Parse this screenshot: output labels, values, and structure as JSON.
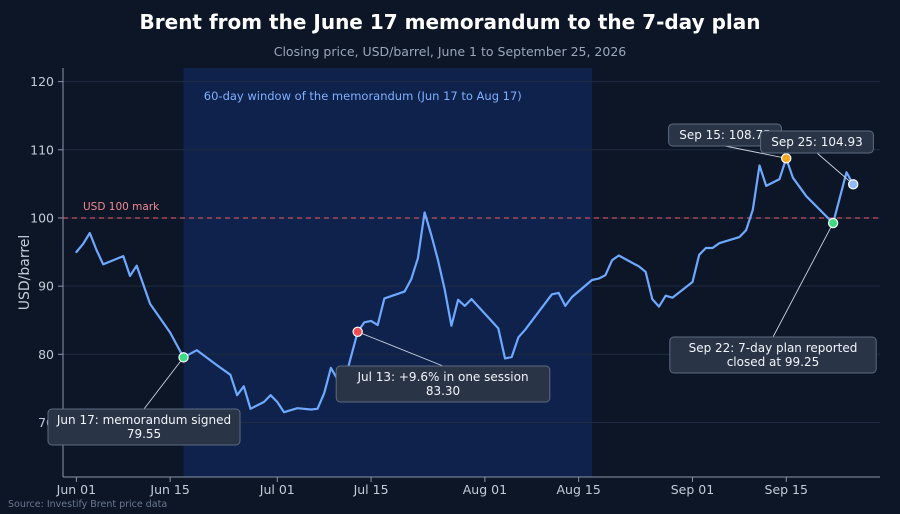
{
  "chart_data": {
    "type": "line",
    "title": "Brent from the June 17 memorandum to the 7-day plan",
    "subtitle": "Closing price, USD/barrel, June 1 to September 25, 2026",
    "ylabel": "USD/barrel",
    "xlabel": "",
    "source": "Source: Investify Brent price data",
    "xlim": [
      "2026-05-30",
      "2026-09-29"
    ],
    "ylim": [
      62,
      122
    ],
    "yticks": [
      70,
      80,
      90,
      100,
      110,
      120
    ],
    "xticks": [
      {
        "date": "2026-06-01",
        "label": "Jun 01"
      },
      {
        "date": "2026-06-15",
        "label": "Jun 15"
      },
      {
        "date": "2026-07-01",
        "label": "Jul 01"
      },
      {
        "date": "2026-07-15",
        "label": "Jul 15"
      },
      {
        "date": "2026-08-01",
        "label": "Aug 01"
      },
      {
        "date": "2026-08-15",
        "label": "Aug 15"
      },
      {
        "date": "2026-09-01",
        "label": "Sep 01"
      },
      {
        "date": "2026-09-15",
        "label": "Sep 15"
      }
    ],
    "grid": true,
    "series": [
      {
        "color": "#6ea8ff",
        "points": [
          [
            "2026-06-01",
            95.0
          ],
          [
            "2026-06-02",
            96.2
          ],
          [
            "2026-06-03",
            97.8
          ],
          [
            "2026-06-04",
            95.3
          ],
          [
            "2026-06-05",
            93.2
          ],
          [
            "2026-06-08",
            94.4
          ],
          [
            "2026-06-09",
            91.5
          ],
          [
            "2026-06-10",
            93.0
          ],
          [
            "2026-06-12",
            87.4
          ],
          [
            "2026-06-15",
            83.2
          ],
          [
            "2026-06-17",
            79.55
          ],
          [
            "2026-06-19",
            80.6
          ],
          [
            "2026-06-22",
            78.4
          ],
          [
            "2026-06-24",
            77.0
          ],
          [
            "2026-06-25",
            74.0
          ],
          [
            "2026-06-26",
            75.3
          ],
          [
            "2026-06-27",
            72.0
          ],
          [
            "2026-06-29",
            73.0
          ],
          [
            "2026-06-30",
            74.0
          ],
          [
            "2026-07-01",
            73.0
          ],
          [
            "2026-07-02",
            71.5
          ],
          [
            "2026-07-04",
            72.1
          ],
          [
            "2026-07-06",
            71.9
          ],
          [
            "2026-07-07",
            72.0
          ],
          [
            "2026-07-08",
            74.3
          ],
          [
            "2026-07-09",
            78.0
          ],
          [
            "2026-07-10",
            76.3
          ],
          [
            "2026-07-11",
            76.0
          ],
          [
            "2026-07-13",
            83.3
          ],
          [
            "2026-07-14",
            84.7
          ],
          [
            "2026-07-15",
            84.9
          ],
          [
            "2026-07-16",
            84.3
          ],
          [
            "2026-07-17",
            88.2
          ],
          [
            "2026-07-20",
            89.2
          ],
          [
            "2026-07-21",
            91.0
          ],
          [
            "2026-07-22",
            94.1
          ],
          [
            "2026-07-23",
            100.8
          ],
          [
            "2026-07-24",
            97.5
          ],
          [
            "2026-07-25",
            93.8
          ],
          [
            "2026-07-26",
            89.5
          ],
          [
            "2026-07-27",
            84.2
          ],
          [
            "2026-07-28",
            88.0
          ],
          [
            "2026-07-29",
            87.1
          ],
          [
            "2026-07-30",
            88.1
          ],
          [
            "2026-08-03",
            83.8
          ],
          [
            "2026-08-04",
            79.4
          ],
          [
            "2026-08-05",
            79.6
          ],
          [
            "2026-08-06",
            82.5
          ],
          [
            "2026-08-07",
            83.6
          ],
          [
            "2026-08-11",
            88.8
          ],
          [
            "2026-08-12",
            89.0
          ],
          [
            "2026-08-13",
            87.1
          ],
          [
            "2026-08-14",
            88.4
          ],
          [
            "2026-08-17",
            90.9
          ],
          [
            "2026-08-18",
            91.1
          ],
          [
            "2026-08-19",
            91.6
          ],
          [
            "2026-08-20",
            93.8
          ],
          [
            "2026-08-21",
            94.5
          ],
          [
            "2026-08-24",
            92.9
          ],
          [
            "2026-08-25",
            92.1
          ],
          [
            "2026-08-26",
            88.1
          ],
          [
            "2026-08-27",
            87.0
          ],
          [
            "2026-08-28",
            88.6
          ],
          [
            "2026-08-29",
            88.3
          ],
          [
            "2026-09-01",
            90.6
          ],
          [
            "2026-09-02",
            94.6
          ],
          [
            "2026-09-03",
            95.6
          ],
          [
            "2026-09-04",
            95.6
          ],
          [
            "2026-09-05",
            96.3
          ],
          [
            "2026-09-08",
            97.2
          ],
          [
            "2026-09-09",
            98.2
          ],
          [
            "2026-09-10",
            101.2
          ],
          [
            "2026-09-11",
            107.7
          ],
          [
            "2026-09-12",
            104.7
          ],
          [
            "2026-09-14",
            105.7
          ],
          [
            "2026-09-15",
            108.75
          ],
          [
            "2026-09-16",
            105.9
          ],
          [
            "2026-09-18",
            103.2
          ],
          [
            "2026-09-22",
            99.25
          ],
          [
            "2026-09-24",
            106.7
          ],
          [
            "2026-09-25",
            104.93
          ]
        ]
      }
    ],
    "reference_line": {
      "value": 100,
      "label": "USD 100 mark",
      "color": "#e05a66"
    },
    "shaded_window": {
      "start": "2026-06-17",
      "end": "2026-08-17",
      "label": "60-day window of the memorandum (Jun 17 to Aug 17)"
    },
    "highlights": [
      {
        "date": "2026-06-17",
        "value": 79.55,
        "color": "#3ddc84",
        "lines": [
          "Jun 17: memorandum signed",
          "79.55"
        ]
      },
      {
        "date": "2026-07-13",
        "value": 83.3,
        "color": "#ef4e54",
        "lines": [
          "Jul 13: +9.6% in one session",
          "83.30"
        ]
      },
      {
        "date": "2026-09-15",
        "value": 108.75,
        "color": "#f5a623",
        "lines": [
          "Sep 15: 108.75"
        ]
      },
      {
        "date": "2026-09-25",
        "value": 104.93,
        "color": "#8fbaff",
        "lines": [
          "Sep 25: 104.93"
        ]
      },
      {
        "date": "2026-09-22",
        "value": 99.25,
        "color": "#3ddc84",
        "lines": [
          "Sep 22: 7-day plan reported",
          "closed at 99.25"
        ]
      }
    ]
  }
}
